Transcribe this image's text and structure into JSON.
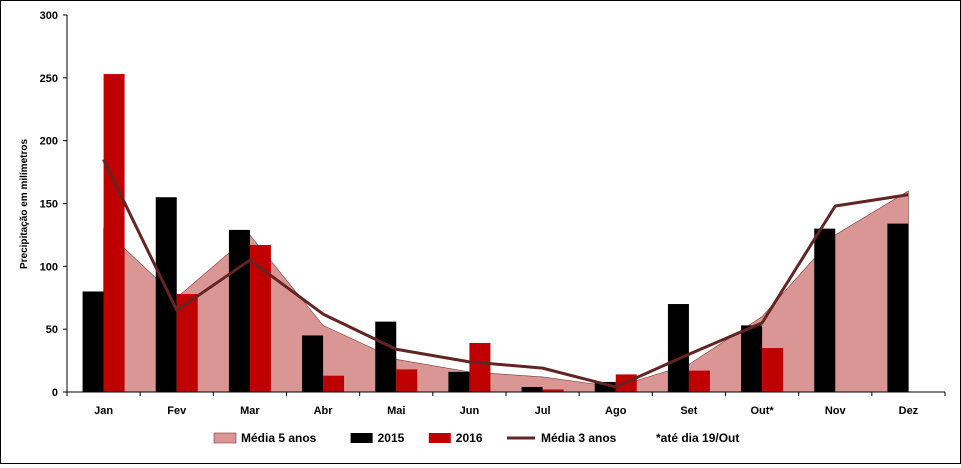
{
  "chart_data": {
    "type": "bar",
    "categories": [
      "Jan",
      "Fev",
      "Mar",
      "Abr",
      "Mai",
      "Jun",
      "Jul",
      "Ago",
      "Set",
      "Out*",
      "Nov",
      "Dez"
    ],
    "ylabel": "Precipitação em milímetros",
    "ylim": [
      0,
      300
    ],
    "yticks": [
      0,
      50,
      100,
      150,
      200,
      250,
      300
    ],
    "grid": false,
    "legend_position": "bottom",
    "note": "*até dia 19/Out",
    "series": [
      {
        "name": "Média 5 anos",
        "kind": "area",
        "color": "#d99694",
        "values": [
          130,
          75,
          125,
          53,
          26,
          16,
          12,
          4,
          22,
          60,
          125,
          160
        ]
      },
      {
        "name": "2015",
        "kind": "bar",
        "color": "#000000",
        "values": [
          80,
          155,
          129,
          45,
          56,
          16,
          4,
          8,
          70,
          53,
          130,
          134
        ]
      },
      {
        "name": "2016",
        "kind": "bar",
        "color": "#c00000",
        "values": [
          253,
          78,
          117,
          13,
          18,
          39,
          2,
          14,
          17,
          35,
          null,
          null
        ]
      },
      {
        "name": "Média 3 anos",
        "kind": "line",
        "color": "#632523",
        "values": [
          185,
          65,
          105,
          62,
          34,
          24,
          19,
          4,
          30,
          55,
          148,
          157
        ]
      }
    ]
  }
}
